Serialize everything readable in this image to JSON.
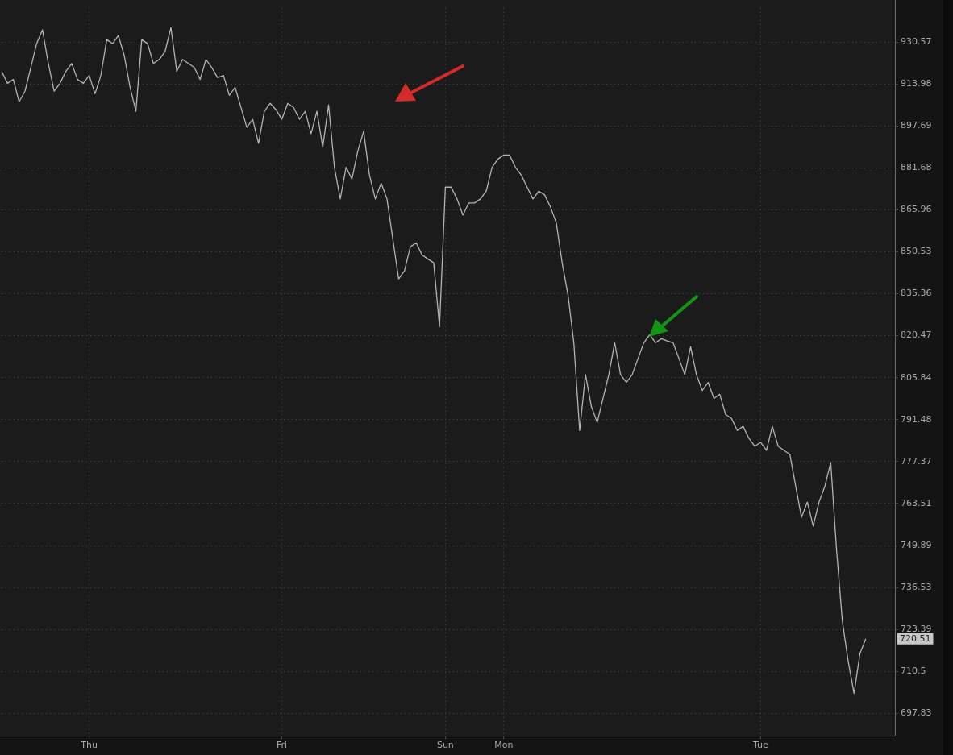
{
  "chart_data": {
    "type": "line",
    "categories": [
      null,
      null,
      null,
      null,
      null,
      null,
      null,
      null,
      null,
      null,
      null,
      null,
      null,
      null,
      null,
      "Thu",
      null,
      null,
      null,
      null,
      null,
      null,
      null,
      null,
      null,
      null,
      null,
      null,
      null,
      null,
      null,
      null,
      null,
      null,
      null,
      null,
      null,
      null,
      null,
      null,
      null,
      null,
      null,
      null,
      null,
      null,
      null,
      null,
      "Fri",
      null,
      null,
      null,
      null,
      null,
      null,
      null,
      null,
      null,
      null,
      null,
      null,
      null,
      null,
      null,
      null,
      null,
      null,
      null,
      null,
      null,
      null,
      null,
      null,
      null,
      null,
      null,
      "Sun",
      null,
      null,
      null,
      null,
      null,
      null,
      null,
      null,
      null,
      "Mon",
      null,
      null,
      null,
      null,
      null,
      null,
      null,
      null,
      null,
      null,
      null,
      null,
      null,
      null,
      null,
      null,
      null,
      null,
      null,
      null,
      null,
      null,
      null,
      null,
      null,
      null,
      null,
      null,
      null,
      null,
      null,
      null,
      null,
      null,
      null,
      null,
      null,
      null,
      null,
      null,
      null,
      null,
      null,
      "Tue",
      null,
      null,
      null,
      null,
      null,
      null,
      null,
      null,
      null,
      null,
      null,
      null,
      null,
      null,
      null,
      null,
      null,
      null,
      null,
      null,
      null,
      null,
      null
    ],
    "series": [
      {
        "color": "#b4b4b4",
        "values": [
          918.9,
          914.2,
          915.7,
          907.0,
          911.1,
          920.4,
          929.9,
          935.4,
          922.0,
          911.1,
          914.2,
          918.9,
          922.0,
          915.7,
          914.2,
          917.3,
          910.1,
          917.3,
          931.5,
          929.9,
          933.1,
          925.2,
          912.6,
          903.3,
          931.5,
          929.9,
          922.0,
          923.6,
          926.8,
          936.3,
          918.9,
          923.6,
          922.0,
          920.4,
          915.7,
          923.6,
          920.4,
          916.4,
          917.3,
          909.5,
          912.6,
          904.8,
          897.1,
          900.2,
          891.0,
          903.3,
          906.4,
          903.9,
          900.2,
          906.4,
          904.8,
          900.2,
          903.3,
          894.7,
          903.3,
          889.5,
          905.8,
          881.9,
          870.0,
          881.9,
          877.4,
          888.0,
          895.6,
          878.9,
          870.0,
          875.9,
          870.0,
          855.2,
          840.7,
          843.6,
          852.3,
          853.8,
          849.4,
          847.9,
          846.5,
          823.6,
          874.4,
          874.4,
          870.0,
          864.0,
          868.5,
          868.5,
          870.0,
          872.9,
          881.9,
          885.0,
          886.5,
          886.5,
          881.9,
          878.9,
          874.4,
          870.0,
          872.9,
          871.5,
          867.0,
          861.1,
          846.5,
          835.0,
          818.0,
          787.8,
          806.9,
          796.0,
          790.5,
          798.7,
          806.9,
          818.0,
          806.9,
          804.2,
          806.9,
          812.5,
          818.0,
          820.8,
          818.0,
          819.4,
          818.6,
          818.0,
          812.5,
          806.9,
          816.6,
          806.9,
          801.4,
          804.2,
          798.7,
          800.1,
          793.2,
          791.9,
          787.8,
          789.2,
          785.1,
          782.5,
          783.8,
          781.1,
          789.2,
          782.5,
          781.1,
          779.8,
          769.2,
          759.0,
          764.0,
          756.2,
          764.0,
          769.2,
          777.1,
          748.4,
          725.8,
          713.5,
          703.8,
          715.9,
          720.51,
          null,
          null,
          null,
          null,
          null
        ]
      }
    ],
    "ylim": [
      691.2,
      944.3
    ],
    "yticks": [
      930.57,
      913.98,
      897.69,
      881.68,
      865.96,
      850.53,
      835.36,
      820.47,
      805.84,
      791.48,
      777.37,
      763.51,
      749.89,
      736.53,
      723.39,
      710.5,
      697.83
    ],
    "log": true,
    "grid": true,
    "legend": false,
    "marker": "none",
    "line_style": "solid",
    "annotations": [
      "720.51"
    ]
  }
}
